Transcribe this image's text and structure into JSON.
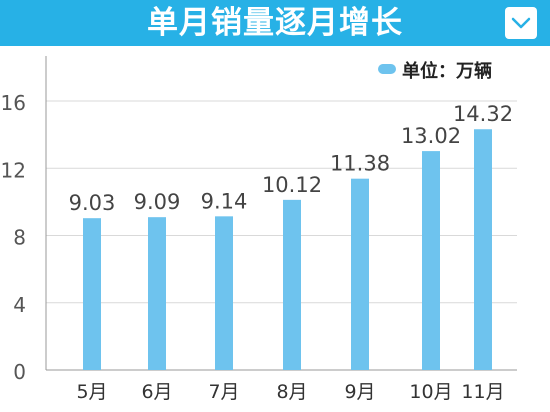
{
  "header": {
    "title": "单月销量逐月增长",
    "accent_color": "#27b1e6",
    "collapse_icon": "chevron-down-icon"
  },
  "chart_data": {
    "type": "bar",
    "categories": [
      "5月",
      "6月",
      "7月",
      "8月",
      "9月",
      "10月",
      "11月"
    ],
    "values": [
      9.03,
      9.09,
      9.14,
      10.12,
      11.38,
      13.02,
      14.32
    ],
    "value_labels": [
      "9.03",
      "9.09",
      "9.14",
      "10.12",
      "11.38",
      "13.02",
      "14.32"
    ],
    "yticks": [
      "0",
      "4",
      "8",
      "12",
      "16"
    ],
    "ylim": [
      0,
      16
    ],
    "grid": true,
    "legend": {
      "label": "单位：万辆",
      "position": "top-right"
    },
    "bar_color": "#6ec3ee",
    "xlabel": "",
    "ylabel": ""
  }
}
